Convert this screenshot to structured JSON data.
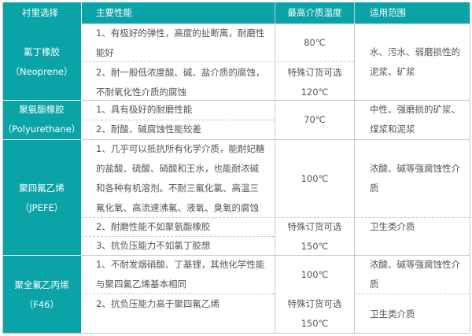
{
  "colors": {
    "header_bg": "#0aa3a8",
    "header_text": "#ffffff",
    "body_text": "#555555",
    "grid": "#c8c8c8"
  },
  "header": [
    "衬里选择",
    "主要性能",
    "最高介质温度",
    "适用范围"
  ],
  "rows": [
    {
      "material": "氯丁橡胶\n（Neoprene）",
      "props": [
        "1、有极好的弹性，高度的扯断离，耐磨性\n能好",
        "2、耐一般低浓度酸、碱、盐介质的腐蚀，\n不耐氧化性介质的腐蚀"
      ],
      "temp": [
        "80℃",
        "特殊订货可选\n120℃"
      ],
      "use": [
        "水、污水、弱磨损性的\n泥浆、矿浆"
      ]
    },
    {
      "material": "聚氨酯橡胶\n（Polyurethane）",
      "props": [
        "1、具有极好的耐磨性能",
        "2、耐酸、碱腐蚀性能较差"
      ],
      "temp": [
        "70℃"
      ],
      "use": [
        "中性、强磨损的矿浆、\n煤浆和泥浆"
      ]
    },
    {
      "material": "聚四氟乙烯\n（JPEFE）",
      "props": [
        "1、几乎可以抵抗所有化学介质，能耐妃糖\n的盐酸、硫酸、硝酸和王水，也能耐浓碱\n和各种有机溶剂。不耐三氟化氯、高温三\n氟化氧、高流速沸氟、液氧、臭氧的腐蚀",
        "2、耐磨性能不如聚氨酯橡胶",
        "3、抗负压能力不如氯丁胶想"
      ],
      "temp": [
        "100℃",
        "特殊订货可选\n150℃"
      ],
      "use": [
        "浓酸、碱等强腐蚀性介\n质",
        "卫生类介质"
      ]
    },
    {
      "material": "聚全氟乙丙烯\n（F46）",
      "props": [
        "1、不耐发烟硝酸、丁基锂，其他化学性能\n与聚四氟乙烯基本相同",
        "2、抗负压能力高于聚四氟乙烯"
      ],
      "temp": [
        "100℃",
        "特殊订货可选\n150℃"
      ],
      "use": [
        "浓酸、碱等强腐蚀性介\n质",
        "卫生类介质"
      ]
    }
  ]
}
